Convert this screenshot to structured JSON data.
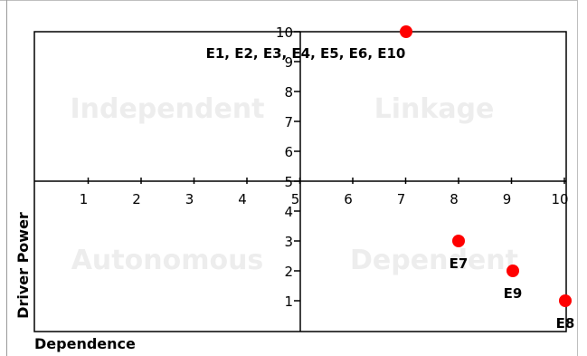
{
  "chart_data": {
    "type": "scatter",
    "xlabel": "Dependence",
    "ylabel": "Driver Power",
    "xlim": [
      0,
      10.5
    ],
    "ylim": [
      0,
      10
    ],
    "x_ticks": [
      1,
      2,
      3,
      4,
      5,
      6,
      7,
      8,
      9,
      10
    ],
    "y_ticks": [
      1,
      2,
      3,
      4,
      5,
      6,
      7,
      8,
      9,
      10
    ],
    "quadrants": {
      "top_left": "Independent",
      "top_right": "Linkage",
      "bottom_left": "Autonomous",
      "bottom_right": "Dependent"
    },
    "grid": false,
    "points": [
      {
        "label": "E1, E2, E3, E4, E5, E6, E10",
        "x": 7,
        "y": 10
      },
      {
        "label": "E7",
        "x": 8,
        "y": 3
      },
      {
        "label": "E9",
        "x": 9,
        "y": 2
      },
      {
        "label": "E8",
        "x": 10,
        "y": 1
      }
    ],
    "marker_color": "#ff0000"
  }
}
